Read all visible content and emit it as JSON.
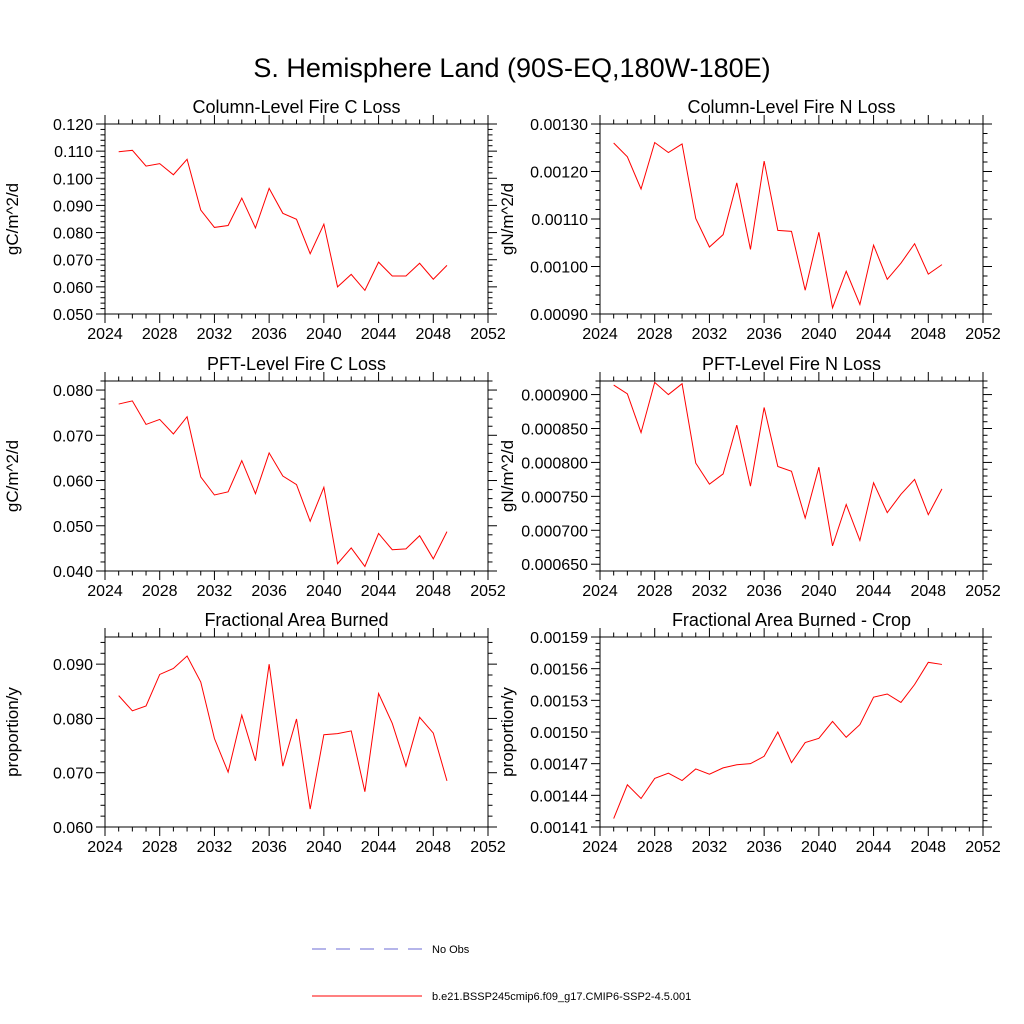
{
  "figure": {
    "title": "S. Hemisphere Land (90S-EQ,180W-180E)"
  },
  "legend": {
    "items": [
      {
        "label": "No Obs",
        "color": "#6b6bd6",
        "dash": true
      },
      {
        "label": "b.e21.BSSP245cmip6.f09_g17.CMIP6-SSP2-4.5.001",
        "color": "#ff0000",
        "dash": false
      }
    ]
  },
  "chart_data": [
    {
      "type": "line",
      "title": "Column-Level Fire C Loss",
      "ylabel": "gC/m^2/d",
      "xlim": [
        2024,
        2052
      ],
      "ylim": [
        0.05,
        0.12
      ],
      "xticks": [
        2024,
        2028,
        2032,
        2036,
        2040,
        2044,
        2048,
        2052
      ],
      "yticks": [
        0.05,
        0.06,
        0.07,
        0.08,
        0.09,
        0.1,
        0.11,
        0.12
      ],
      "ytick_labels": [
        "0.050",
        "0.060",
        "0.070",
        "0.080",
        "0.090",
        "0.100",
        "0.110",
        "0.120"
      ],
      "series": [
        {
          "color": "#ff0000",
          "x": [
            2025,
            2026,
            2027,
            2028,
            2029,
            2030,
            2031,
            2032,
            2033,
            2034,
            2035,
            2036,
            2037,
            2038,
            2039,
            2040,
            2041,
            2042,
            2043,
            2044,
            2045,
            2046,
            2047,
            2048,
            2049
          ],
          "values": [
            0.1098,
            0.1103,
            0.1045,
            0.1054,
            0.1013,
            0.107,
            0.0883,
            0.0819,
            0.0826,
            0.0927,
            0.0817,
            0.0963,
            0.0871,
            0.0849,
            0.0722,
            0.0831,
            0.06,
            0.0646,
            0.0587,
            0.0691,
            0.064,
            0.064,
            0.0687,
            0.0628,
            0.0679
          ]
        }
      ]
    },
    {
      "type": "line",
      "title": "Column-Level Fire N Loss",
      "ylabel": "gN/m^2/d",
      "xlim": [
        2024,
        2052
      ],
      "ylim": [
        0.0009,
        0.0013
      ],
      "xticks": [
        2024,
        2028,
        2032,
        2036,
        2040,
        2044,
        2048,
        2052
      ],
      "yticks": [
        0.0009,
        0.001,
        0.0011,
        0.0012,
        0.0013
      ],
      "ytick_labels": [
        "0.00090",
        "0.00100",
        "0.00110",
        "0.00120",
        "0.00130"
      ],
      "series": [
        {
          "color": "#ff0000",
          "x": [
            2025,
            2026,
            2027,
            2028,
            2029,
            2030,
            2031,
            2032,
            2033,
            2034,
            2035,
            2036,
            2037,
            2038,
            2039,
            2040,
            2041,
            2042,
            2043,
            2044,
            2045,
            2046,
            2047,
            2048,
            2049
          ],
          "values": [
            0.00126,
            0.001231,
            0.001163,
            0.001261,
            0.00124,
            0.001258,
            0.001101,
            0.001041,
            0.001067,
            0.001176,
            0.001036,
            0.001222,
            0.001076,
            0.001074,
            0.00095,
            0.001072,
            0.000913,
            0.00099,
            0.00092,
            0.001045,
            0.000973,
            0.001007,
            0.001048,
            0.000984,
            0.001004
          ]
        }
      ]
    },
    {
      "type": "line",
      "title": "PFT-Level Fire C Loss",
      "ylabel": "gC/m^2/d",
      "xlim": [
        2024,
        2052
      ],
      "ylim": [
        0.04,
        0.082
      ],
      "xticks": [
        2024,
        2028,
        2032,
        2036,
        2040,
        2044,
        2048,
        2052
      ],
      "yticks": [
        0.04,
        0.05,
        0.06,
        0.07,
        0.08
      ],
      "ytick_labels": [
        "0.040",
        "0.050",
        "0.060",
        "0.070",
        "0.080"
      ],
      "series": [
        {
          "color": "#ff0000",
          "x": [
            2025,
            2026,
            2027,
            2028,
            2029,
            2030,
            2031,
            2032,
            2033,
            2034,
            2035,
            2036,
            2037,
            2038,
            2039,
            2040,
            2041,
            2042,
            2043,
            2044,
            2045,
            2046,
            2047,
            2048,
            2049
          ],
          "values": [
            0.0769,
            0.0776,
            0.0724,
            0.0735,
            0.0703,
            0.0741,
            0.0608,
            0.0568,
            0.0575,
            0.0644,
            0.0571,
            0.0661,
            0.061,
            0.0591,
            0.051,
            0.0585,
            0.0416,
            0.0451,
            0.041,
            0.0483,
            0.0447,
            0.0449,
            0.0478,
            0.0427,
            0.0487
          ]
        }
      ]
    },
    {
      "type": "line",
      "title": "PFT-Level Fire N Loss",
      "ylabel": "gN/m^2/d",
      "xlim": [
        2024,
        2052
      ],
      "ylim": [
        0.00064,
        0.00092
      ],
      "xticks": [
        2024,
        2028,
        2032,
        2036,
        2040,
        2044,
        2048,
        2052
      ],
      "yticks": [
        0.00065,
        0.0007,
        0.00075,
        0.0008,
        0.00085,
        0.0009
      ],
      "ytick_labels": [
        "0.000650",
        "0.000700",
        "0.000750",
        "0.000800",
        "0.000850",
        "0.000900"
      ],
      "series": [
        {
          "color": "#ff0000",
          "x": [
            2025,
            2026,
            2027,
            2028,
            2029,
            2030,
            2031,
            2032,
            2033,
            2034,
            2035,
            2036,
            2037,
            2038,
            2039,
            2040,
            2041,
            2042,
            2043,
            2044,
            2045,
            2046,
            2047,
            2048,
            2049
          ],
          "values": [
            0.000914,
            0.000901,
            0.000844,
            0.000918,
            0.0009,
            0.000916,
            0.000799,
            0.000768,
            0.000783,
            0.000855,
            0.000765,
            0.000881,
            0.000794,
            0.000787,
            0.000718,
            0.000793,
            0.000677,
            0.000738,
            0.000685,
            0.00077,
            0.000726,
            0.000753,
            0.000775,
            0.000723,
            0.000761
          ]
        }
      ]
    },
    {
      "type": "line",
      "title": "Fractional Area Burned",
      "ylabel": "proportion/y",
      "xlim": [
        2024,
        2052
      ],
      "ylim": [
        0.06,
        0.095
      ],
      "xticks": [
        2024,
        2028,
        2032,
        2036,
        2040,
        2044,
        2048,
        2052
      ],
      "yticks": [
        0.06,
        0.07,
        0.08,
        0.09
      ],
      "ytick_labels": [
        "0.060",
        "0.070",
        "0.080",
        "0.090"
      ],
      "series": [
        {
          "color": "#ff0000",
          "x": [
            2025,
            2026,
            2027,
            2028,
            2029,
            2030,
            2031,
            2032,
            2033,
            2034,
            2035,
            2036,
            2037,
            2038,
            2039,
            2040,
            2041,
            2042,
            2043,
            2044,
            2045,
            2046,
            2047,
            2048,
            2049
          ],
          "values": [
            0.0842,
            0.0814,
            0.0823,
            0.0881,
            0.0892,
            0.0915,
            0.0867,
            0.0763,
            0.0701,
            0.0806,
            0.0722,
            0.09,
            0.0712,
            0.0799,
            0.0633,
            0.077,
            0.0772,
            0.0777,
            0.0665,
            0.0846,
            0.0791,
            0.0712,
            0.0802,
            0.0773,
            0.0685
          ]
        }
      ]
    },
    {
      "type": "line",
      "title": "Fractional Area Burned - Crop",
      "ylabel": "proportion/y",
      "xlim": [
        2024,
        2052
      ],
      "ylim": [
        0.00141,
        0.00159
      ],
      "xticks": [
        2024,
        2028,
        2032,
        2036,
        2040,
        2044,
        2048,
        2052
      ],
      "yticks": [
        0.00141,
        0.00144,
        0.00147,
        0.0015,
        0.00153,
        0.00156,
        0.00159
      ],
      "ytick_labels": [
        "0.00141",
        "0.00144",
        "0.00147",
        "0.00150",
        "0.00153",
        "0.00156",
        "0.00159"
      ],
      "series": [
        {
          "color": "#ff0000",
          "x": [
            2025,
            2026,
            2027,
            2028,
            2029,
            2030,
            2031,
            2032,
            2033,
            2034,
            2035,
            2036,
            2037,
            2038,
            2039,
            2040,
            2041,
            2042,
            2043,
            2044,
            2045,
            2046,
            2047,
            2048,
            2049
          ],
          "values": [
            0.001418,
            0.00145,
            0.001437,
            0.001456,
            0.001461,
            0.001454,
            0.001465,
            0.00146,
            0.001466,
            0.001469,
            0.00147,
            0.001477,
            0.0015,
            0.001471,
            0.00149,
            0.001494,
            0.00151,
            0.001495,
            0.001507,
            0.001533,
            0.001536,
            0.001528,
            0.001545,
            0.001566,
            0.001564
          ]
        }
      ]
    }
  ]
}
